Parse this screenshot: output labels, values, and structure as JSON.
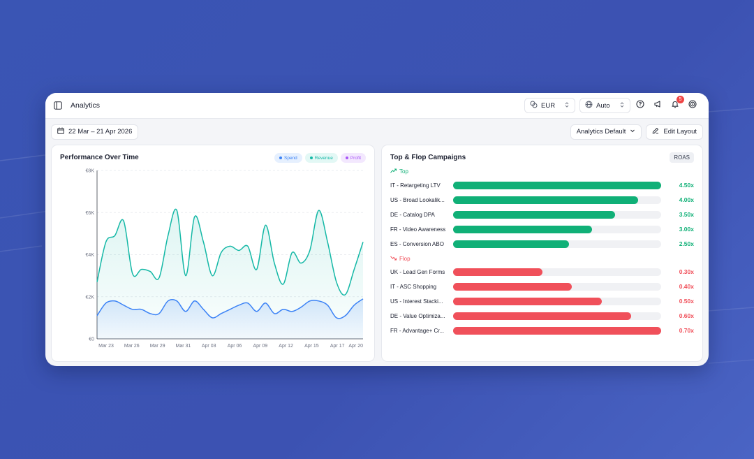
{
  "header": {
    "title": "Analytics",
    "currency": "EUR",
    "language": "Auto",
    "notifications_count": "5"
  },
  "toolbar": {
    "date_range": "22 Mar – 21 Apr 2026",
    "layout_select": "Analytics Default",
    "edit_layout": "Edit Layout"
  },
  "performance": {
    "title": "Performance Over Time",
    "legend": [
      {
        "name": "Spend",
        "color": "#3b82f6",
        "bg": "#e6f0fe"
      },
      {
        "name": "Revenue",
        "color": "#14b8a6",
        "bg": "#e3f8f5"
      },
      {
        "name": "Profit",
        "color": "#a855f7",
        "bg": "#f3e8fe"
      }
    ]
  },
  "chart_data": {
    "type": "area",
    "title": "Performance Over Time",
    "x_tick_labels": [
      "Mar 23",
      "Mar 26",
      "Mar 29",
      "Mar 31",
      "Apr 03",
      "Apr 06",
      "Apr 09",
      "Apr 12",
      "Apr 15",
      "Apr 17",
      "Apr 20"
    ],
    "y_tick_labels": [
      "€0",
      "€2K",
      "€4K",
      "€6K",
      "€8K"
    ],
    "ylim": [
      0,
      8000
    ],
    "series": [
      {
        "name": "Revenue",
        "color": "#14b8a6",
        "values": [
          2700,
          4600,
          4900,
          5600,
          3100,
          3300,
          3200,
          2900,
          4900,
          6100,
          3000,
          5800,
          4600,
          3000,
          4100,
          4400,
          4200,
          4400,
          3300,
          5400,
          3600,
          2600,
          4100,
          3600,
          4200,
          6100,
          4600,
          2700,
          2100,
          3300,
          4600
        ]
      },
      {
        "name": "Spend",
        "color": "#3b82f6",
        "values": [
          1100,
          1700,
          1800,
          1600,
          1400,
          1400,
          1200,
          1200,
          1800,
          1800,
          1300,
          1800,
          1400,
          1000,
          1200,
          1400,
          1600,
          1700,
          1300,
          1700,
          1200,
          1400,
          1300,
          1500,
          1800,
          1800,
          1600,
          1000,
          1100,
          1600,
          1900
        ]
      }
    ],
    "grid": true,
    "legend_position": "top-right"
  },
  "campaigns": {
    "title": "Top & Flop Campaigns",
    "metric": "ROAS",
    "top_label": "Top",
    "flop_label": "Flop",
    "top_color": "#10b077",
    "flop_color": "#f0505a",
    "max_value": 4.5,
    "flop_max_value": 0.7,
    "top": [
      {
        "name": "IT - Retargeting LTV",
        "value": 4.5,
        "label": "4.50x"
      },
      {
        "name": "US - Broad Lookalik...",
        "value": 4.0,
        "label": "4.00x"
      },
      {
        "name": "DE - Catalog DPA",
        "value": 3.5,
        "label": "3.50x"
      },
      {
        "name": "FR - Video Awareness",
        "value": 3.0,
        "label": "3.00x"
      },
      {
        "name": "ES - Conversion ABO",
        "value": 2.5,
        "label": "2.50x"
      }
    ],
    "flop": [
      {
        "name": "UK - Lead Gen Forms",
        "value": 0.3,
        "label": "0.30x"
      },
      {
        "name": "IT - ASC Shopping",
        "value": 0.4,
        "label": "0.40x"
      },
      {
        "name": "US - Interest Stacki...",
        "value": 0.5,
        "label": "0.50x"
      },
      {
        "name": "DE - Value Optimiza...",
        "value": 0.6,
        "label": "0.60x"
      },
      {
        "name": "FR - Advantage+ Cr...",
        "value": 0.7,
        "label": "0.70x"
      }
    ]
  }
}
